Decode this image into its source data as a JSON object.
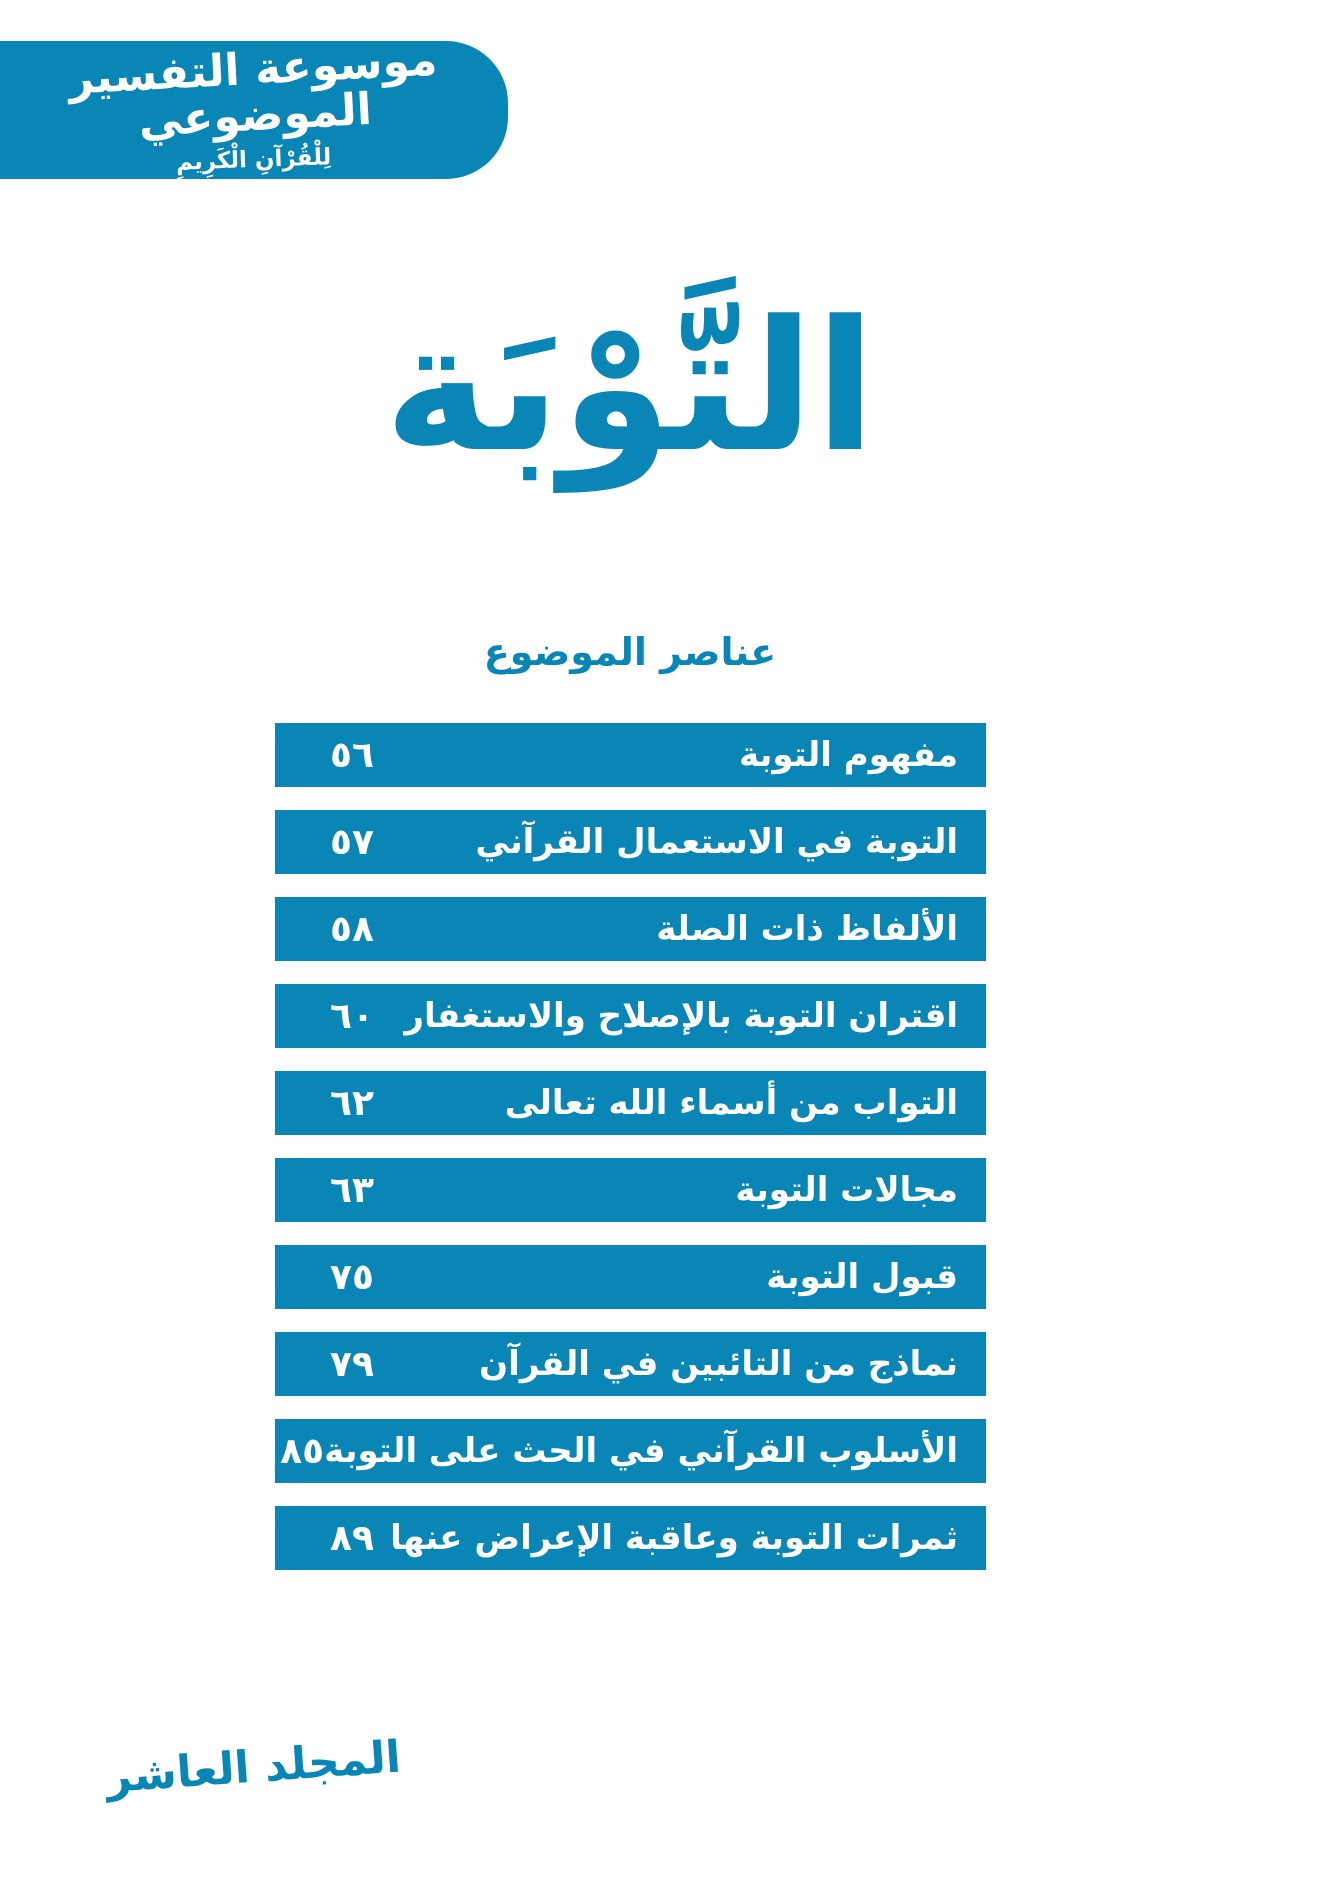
{
  "accent_color": "#0a86b6",
  "header_banner": {
    "line1": "موسوعة التفسير الموضوعي",
    "line2": "لِلْقُرْآنِ الْكَرِيمِ"
  },
  "chapter_title": "التَّوْبَة",
  "section_heading": "عناصر الموضوع",
  "toc": {
    "items": [
      {
        "label": "مفهوم التوبة",
        "page": "٥٦"
      },
      {
        "label": "التوبة في الاستعمال القرآني",
        "page": "٥٧"
      },
      {
        "label": "الألفاظ ذات الصلة",
        "page": "٥٨"
      },
      {
        "label": "اقتران التوبة بالإصلاح والاستغفار",
        "page": "٦٠"
      },
      {
        "label": "التواب من أسماء الله تعالى",
        "page": "٦٢"
      },
      {
        "label": "مجالات التوبة",
        "page": "٦٣"
      },
      {
        "label": "قبول التوبة",
        "page": "٧٥"
      },
      {
        "label": "نماذج من التائبين في القرآن",
        "page": "٧٩"
      },
      {
        "label": "الأسلوب القرآني في الحث على التوبة",
        "page": "٨٥"
      },
      {
        "label": "ثمرات التوبة وعاقبة الإعراض عنها",
        "page": "٨٩"
      }
    ]
  },
  "footer": {
    "volume": "المجلد العاشر"
  }
}
